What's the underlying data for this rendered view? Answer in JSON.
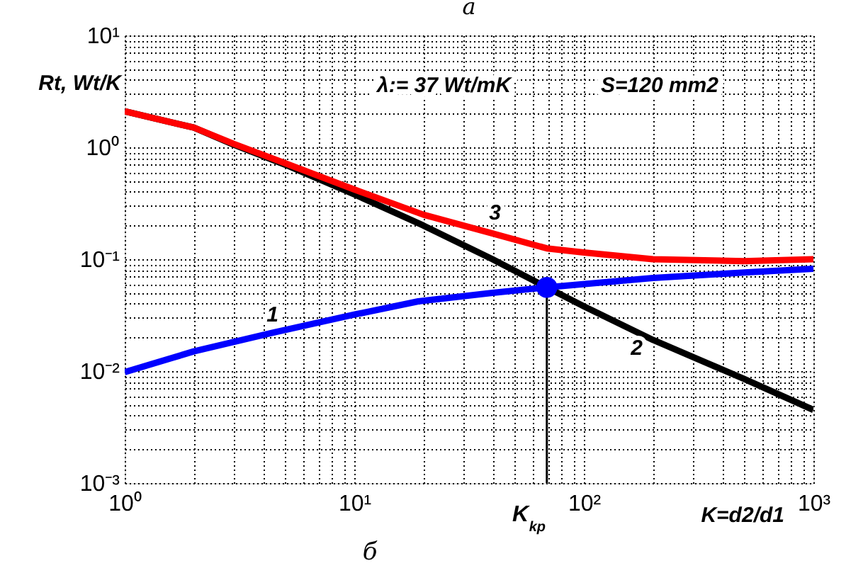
{
  "chart_data": {
    "type": "line",
    "title": "а",
    "ylabel": "Rt, Wt/K",
    "xlabel": "K=d2/d1",
    "log": "xy",
    "grid": true,
    "xlim": [
      1,
      1000
    ],
    "ylim": [
      0.001,
      10
    ],
    "xticks": [
      {
        "value": 1,
        "label": "10⁰"
      },
      {
        "value": 2,
        "label": null
      },
      {
        "value": 3,
        "label": null
      },
      {
        "value": 4,
        "label": null
      },
      {
        "value": 5,
        "label": null
      },
      {
        "value": 6,
        "label": null
      },
      {
        "value": 7,
        "label": null
      },
      {
        "value": 8,
        "label": null
      },
      {
        "value": 9,
        "label": null
      },
      {
        "value": 10,
        "label": "10¹"
      },
      {
        "value": 20,
        "label": null
      },
      {
        "value": 30,
        "label": null
      },
      {
        "value": 40,
        "label": null
      },
      {
        "value": 50,
        "label": null
      },
      {
        "value": 60,
        "label": null
      },
      {
        "value": 70,
        "label": null
      },
      {
        "value": 80,
        "label": null
      },
      {
        "value": 90,
        "label": null
      },
      {
        "value": 100,
        "label": "10²"
      },
      {
        "value": 200,
        "label": null
      },
      {
        "value": 300,
        "label": null
      },
      {
        "value": 400,
        "label": null
      },
      {
        "value": 500,
        "label": null
      },
      {
        "value": 600,
        "label": null
      },
      {
        "value": 700,
        "label": null
      },
      {
        "value": 800,
        "label": null
      },
      {
        "value": 900,
        "label": null
      },
      {
        "value": 1000,
        "label": "10³"
      }
    ],
    "yticks": [
      {
        "value": 0.001,
        "label": "10⁻³"
      },
      {
        "value": 0.002,
        "label": null
      },
      {
        "value": 0.003,
        "label": null
      },
      {
        "value": 0.004,
        "label": null
      },
      {
        "value": 0.005,
        "label": null
      },
      {
        "value": 0.006,
        "label": null
      },
      {
        "value": 0.007,
        "label": null
      },
      {
        "value": 0.008,
        "label": null
      },
      {
        "value": 0.009,
        "label": null
      },
      {
        "value": 0.01,
        "label": "10⁻²"
      },
      {
        "value": 0.02,
        "label": null
      },
      {
        "value": 0.03,
        "label": null
      },
      {
        "value": 0.04,
        "label": null
      },
      {
        "value": 0.05,
        "label": null
      },
      {
        "value": 0.06,
        "label": null
      },
      {
        "value": 0.07,
        "label": null
      },
      {
        "value": 0.08,
        "label": null
      },
      {
        "value": 0.09,
        "label": null
      },
      {
        "value": 0.1,
        "label": "10⁻¹"
      },
      {
        "value": 0.2,
        "label": null
      },
      {
        "value": 0.3,
        "label": null
      },
      {
        "value": 0.4,
        "label": null
      },
      {
        "value": 0.5,
        "label": null
      },
      {
        "value": 0.6,
        "label": null
      },
      {
        "value": 0.7,
        "label": null
      },
      {
        "value": 0.8,
        "label": null
      },
      {
        "value": 0.9,
        "label": null
      },
      {
        "value": 1,
        "label": "10⁰"
      },
      {
        "value": 2,
        "label": null
      },
      {
        "value": 3,
        "label": null
      },
      {
        "value": 4,
        "label": null
      },
      {
        "value": 5,
        "label": null
      },
      {
        "value": 6,
        "label": null
      },
      {
        "value": 7,
        "label": null
      },
      {
        "value": 8,
        "label": null
      },
      {
        "value": 9,
        "label": null
      },
      {
        "value": 10,
        "label": "10¹"
      }
    ],
    "series": [
      {
        "type": "line",
        "color": "#000000",
        "x": [
          1,
          2,
          3,
          5,
          10,
          20,
          40,
          69,
          100,
          200,
          500,
          1000
        ],
        "values": [
          2.1,
          1.5,
          1.05,
          0.7,
          0.38,
          0.2,
          0.1,
          0.056,
          0.038,
          0.019,
          0.0085,
          0.0045
        ]
      },
      {
        "type": "line",
        "color": "#ff0000",
        "x": [
          1,
          2,
          3,
          5,
          10,
          20,
          40,
          69,
          100,
          200,
          500,
          1000
        ],
        "values": [
          2.1,
          1.5,
          1.07,
          0.72,
          0.42,
          0.25,
          0.17,
          0.125,
          0.115,
          0.1,
          0.096,
          0.1
        ]
      },
      {
        "type": "line",
        "color": "#0000ff",
        "x": [
          1,
          2,
          4.4,
          10,
          19,
          40,
          69,
          200,
          500,
          1000
        ],
        "values": [
          0.0098,
          0.015,
          0.022,
          0.032,
          0.042,
          0.05,
          0.056,
          0.068,
          0.076,
          0.082
        ]
      },
      {
        "type": "line",
        "color": "#000000",
        "x": [
          69,
          69
        ],
        "values": [
          0.001,
          0.056
        ]
      },
      {
        "type": "scatter",
        "marker": "circle",
        "color": "#0000ff",
        "x": [
          69
        ],
        "values": [
          0.056
        ]
      }
    ],
    "annotations": [
      {
        "text": "1",
        "x": 4.4,
        "y": 0.022
      },
      {
        "text": "2",
        "x": 170,
        "y": 0.025
      },
      {
        "text": "3",
        "x": 41,
        "y": 0.18
      },
      "λ:= 37  Wt/mK",
      "S=120 mm2",
      "K$_{kp}$",
      "б"
    ]
  }
}
